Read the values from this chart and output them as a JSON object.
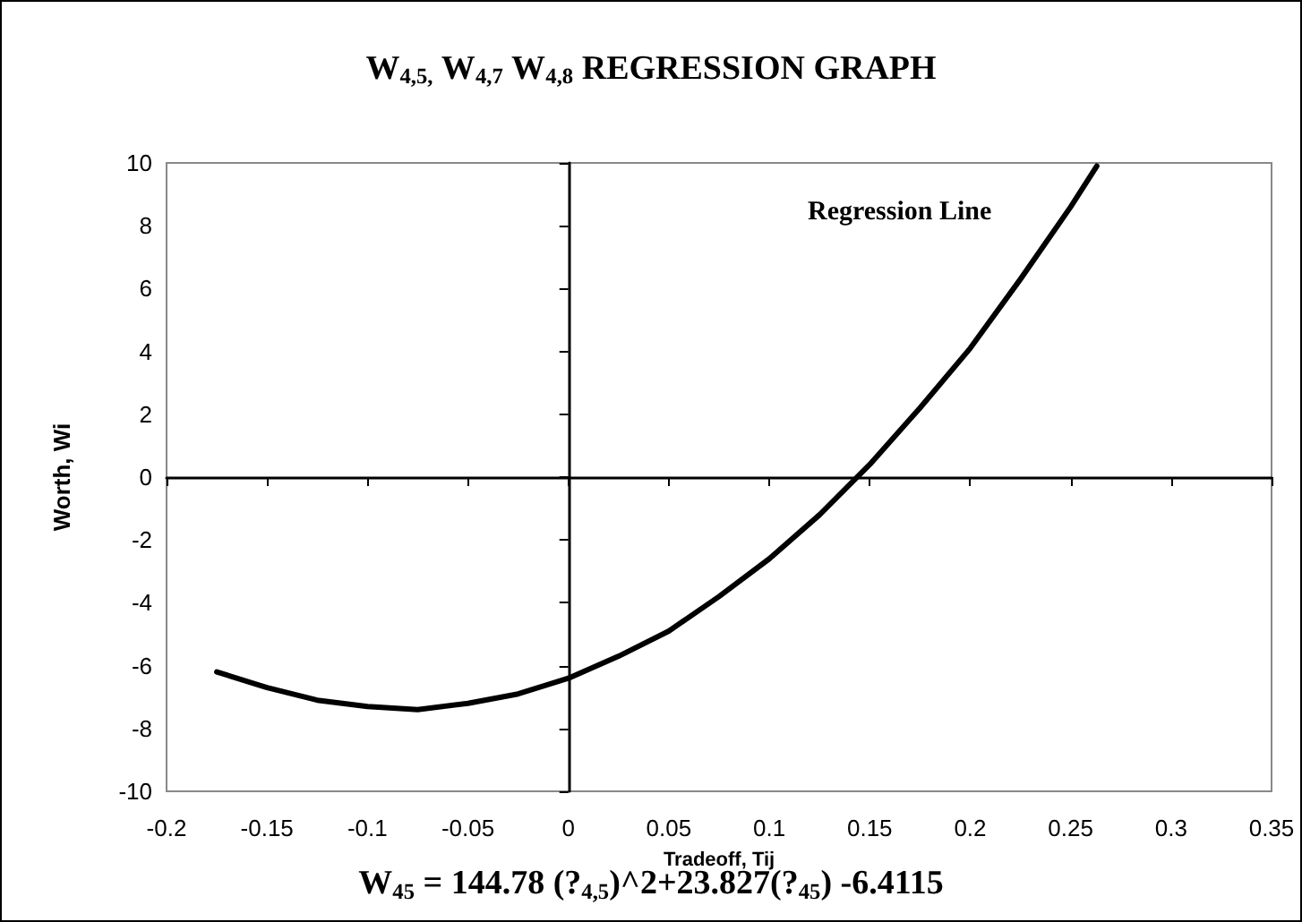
{
  "chart_data": {
    "type": "line",
    "title": "W$_{4,5,}$ W$_{4,7}$ W$_{4,8}$ REGRESSION GRAPH",
    "xlabel": "Tradeoff, Tij",
    "ylabel": "Worth, Wi",
    "x": [
      -0.175,
      -0.15,
      -0.125,
      -0.1,
      -0.075,
      -0.05,
      -0.025,
      0,
      0.025,
      0.05,
      0.075,
      0.1,
      0.125,
      0.15,
      0.175,
      0.2,
      0.225,
      0.25,
      0.263
    ],
    "series": [
      {
        "color": "#000000",
        "values": [
          -6.2,
          -6.7,
          -7.1,
          -7.3,
          -7.4,
          -7.2,
          -6.9,
          -6.4,
          -5.7,
          -4.9,
          -3.8,
          -2.6,
          -1.2,
          0.4,
          2.2,
          4.1,
          6.3,
          8.6,
          9.9
        ]
      }
    ],
    "xlim": [
      -0.2,
      0.35
    ],
    "xticks": [
      -0.2,
      -0.15,
      -0.1,
      -0.05,
      0,
      0.05,
      0.1,
      0.15,
      0.2,
      0.25,
      0.3,
      0.35
    ],
    "ylim": [
      -10,
      10
    ],
    "yticks": [
      -10,
      -8,
      -6,
      -4,
      -2,
      0,
      2,
      4,
      6,
      8,
      10
    ],
    "marker": "none",
    "annotations": [
      "Regression Line",
      "W$_{45}$ = 144.78 (?$_{4,5}$)^2+23.827(?$_{45}$) -6.4115"
    ]
  }
}
